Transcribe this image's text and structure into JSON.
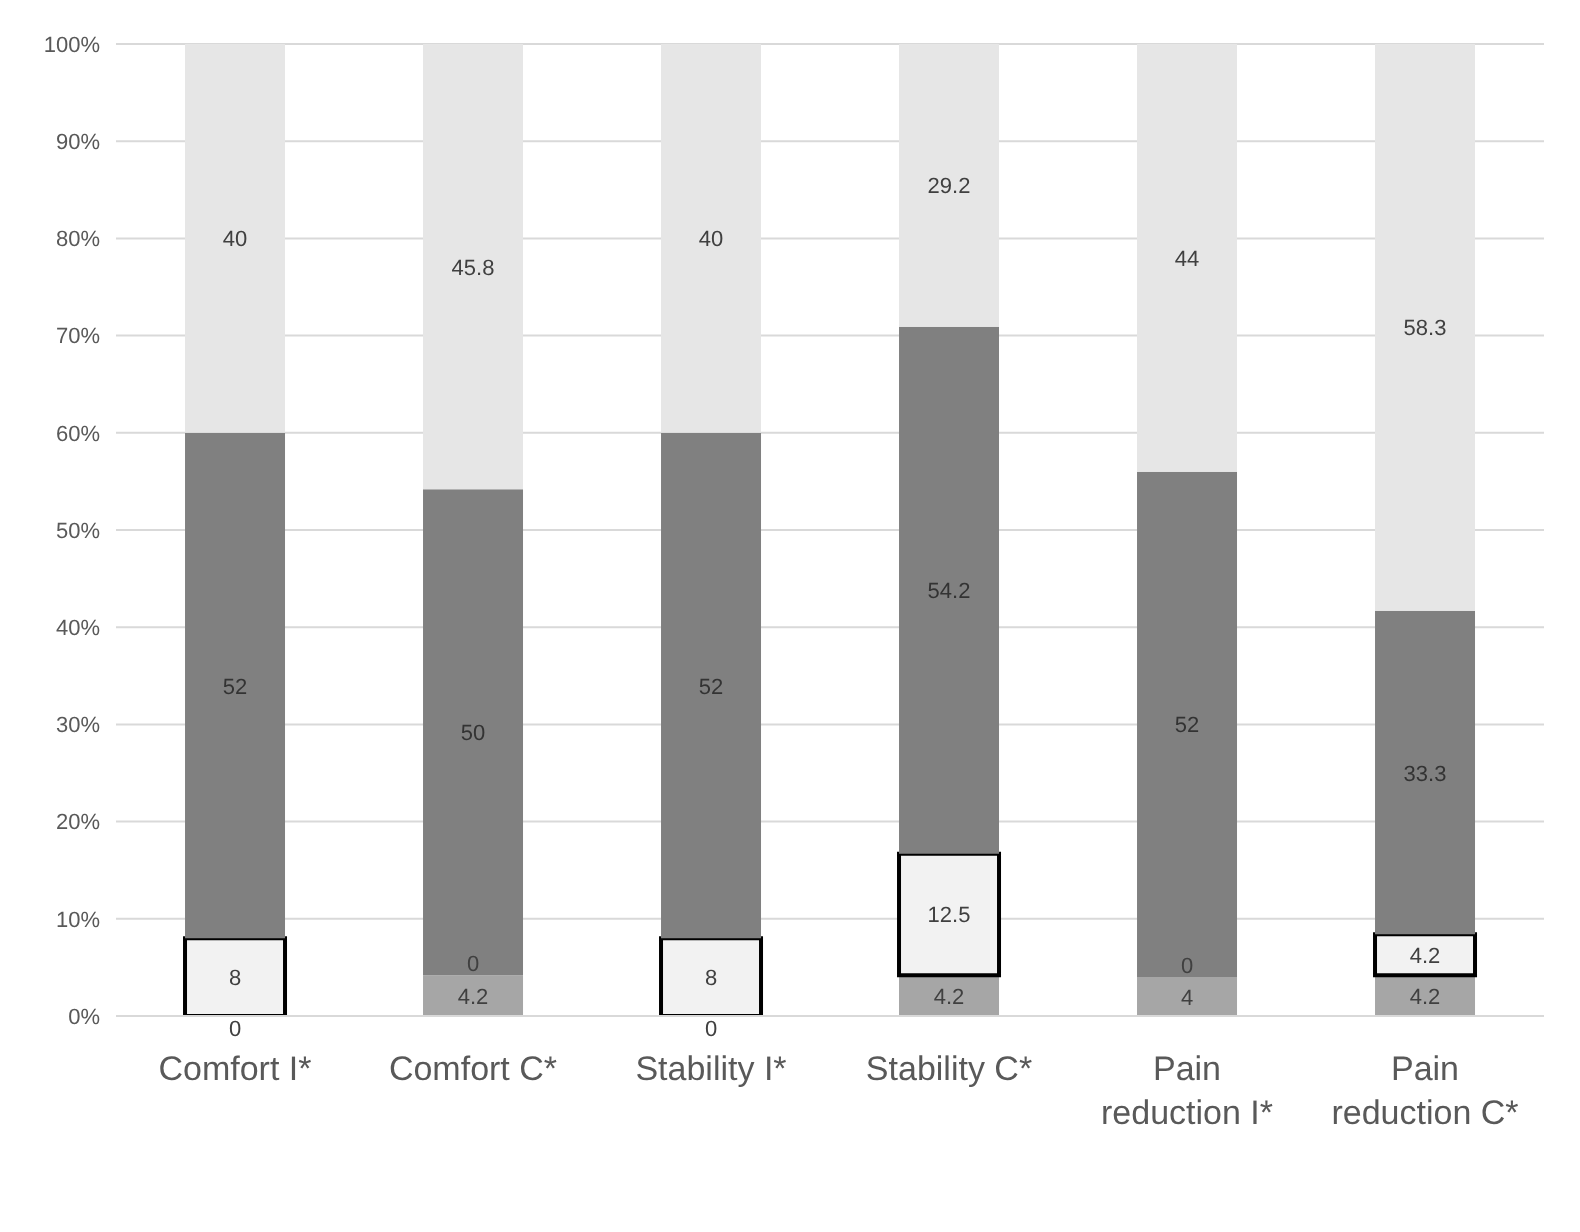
{
  "chart_data": {
    "type": "bar",
    "stacked": true,
    "categories": [
      "Comfort I*",
      "Comfort C*",
      "Stability I*",
      "Stability C*",
      "Pain reduction I*",
      "Pain reduction C*"
    ],
    "series": [
      {
        "color": "#a6a6a6",
        "values": [
          0,
          4.2,
          0,
          4.2,
          4,
          4.2
        ],
        "value_labels": [
          null,
          "4.2",
          null,
          "4.2",
          "4",
          "4.2"
        ]
      },
      {
        "color": "#f2f2f2",
        "values": [
          8,
          0,
          8,
          12.5,
          0,
          4.2
        ],
        "value_labels": [
          "8",
          null,
          "8",
          "12.5",
          null,
          "4.2"
        ]
      },
      {
        "color": "#808080",
        "values": [
          52,
          50,
          52,
          54.2,
          52,
          33.3
        ],
        "value_labels": [
          "52",
          "50",
          "52",
          "54.2",
          "52",
          "33.3"
        ]
      },
      {
        "color": "#e6e6e6",
        "values": [
          40,
          45.8,
          40,
          29.2,
          44,
          58.3
        ],
        "value_labels": [
          "40",
          "45.8",
          "40",
          "29.2",
          "44",
          "58.3"
        ]
      }
    ],
    "annotations": [
      {
        "text": "0",
        "x": "Comfort I*",
        "y": 0
      },
      {
        "text": "0",
        "x": "Comfort C*",
        "y": 4.2
      },
      {
        "text": "0",
        "x": "Stability I*",
        "y": 0
      },
      {
        "text": "0",
        "x": "Pain reduction I*",
        "y": 4
      }
    ],
    "ylim": [
      0,
      100
    ],
    "yticks": [
      {
        "value": 0,
        "label": "0%"
      },
      {
        "value": 10,
        "label": "10%"
      },
      {
        "value": 20,
        "label": "20%"
      },
      {
        "value": 30,
        "label": "30%"
      },
      {
        "value": 40,
        "label": "40%"
      },
      {
        "value": 50,
        "label": "50%"
      },
      {
        "value": 60,
        "label": "60%"
      },
      {
        "value": 70,
        "label": "70%"
      },
      {
        "value": 80,
        "label": "80%"
      },
      {
        "value": 90,
        "label": "90%"
      },
      {
        "value": 100,
        "label": "100%"
      }
    ],
    "grid": "y",
    "legend": false
  }
}
